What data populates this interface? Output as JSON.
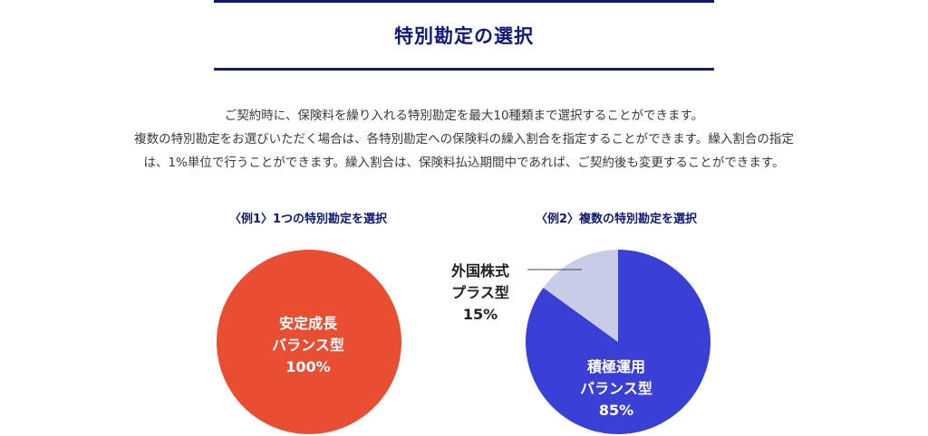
{
  "section": {
    "title": "特別勘定の選択"
  },
  "description": {
    "line1": "ご契約時に、保険料を繰り入れる特別勘定を最大10種類まで選択することができます。",
    "line2": "複数の特別勘定をお選びいただく場合は、各特別勘定への保険料の繰入割合を指定することができます。繰入割合の指定",
    "line3": "は、1%単位で行うことができます。繰入割合は、保険料払込期間中であれば、ご契約後も変更することができます。"
  },
  "examples": [
    {
      "title": "〈例1〉1つの特別勘定を選択",
      "slices": [
        {
          "name_line1": "安定成長",
          "name_line2": "バランス型",
          "percent_label": "100%",
          "value": 100,
          "color": "#e94e33"
        }
      ]
    },
    {
      "title": "〈例2〉複数の特別勘定を選択",
      "slices": [
        {
          "name_line1": "積極運用",
          "name_line2": "バランス型",
          "percent_label": "85%",
          "value": 85,
          "color": "#3a3fd6"
        },
        {
          "name_line1": "外国株式",
          "name_line2": "プラス型",
          "percent_label": "15%",
          "value": 15,
          "color": "#c8cde9"
        }
      ]
    }
  ],
  "chart_data": [
    {
      "type": "pie",
      "title": "〈例1〉1つの特別勘定を選択",
      "labels": [
        "安定成長バランス型"
      ],
      "values": [
        100
      ]
    },
    {
      "type": "pie",
      "title": "〈例2〉複数の特別勘定を選択",
      "labels": [
        "積極運用バランス型",
        "外国株式プラス型"
      ],
      "values": [
        85,
        15
      ]
    }
  ]
}
